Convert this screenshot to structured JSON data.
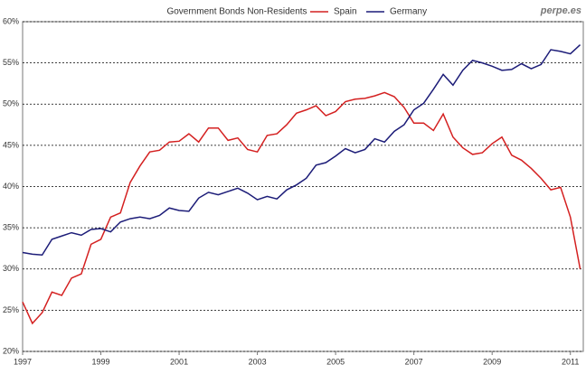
{
  "chart_data": {
    "type": "line",
    "title": "Government Bonds Non-Residents",
    "watermark": "perpe.es",
    "x": [
      1997,
      1997.25,
      1997.5,
      1997.75,
      1998,
      1998.25,
      1998.5,
      1998.75,
      1999,
      1999.25,
      1999.5,
      1999.75,
      2000,
      2000.25,
      2000.5,
      2000.75,
      2001,
      2001.25,
      2001.5,
      2001.75,
      2002,
      2002.25,
      2002.5,
      2002.75,
      2003,
      2003.25,
      2003.5,
      2003.75,
      2004,
      2004.25,
      2004.5,
      2004.75,
      2005,
      2005.25,
      2005.5,
      2005.75,
      2006,
      2006.25,
      2006.5,
      2006.75,
      2007,
      2007.25,
      2007.5,
      2007.75,
      2008,
      2008.25,
      2008.5,
      2008.75,
      2009,
      2009.25,
      2009.5,
      2009.75,
      2010,
      2010.25,
      2010.5,
      2010.75,
      2011,
      2011.25
    ],
    "series": [
      {
        "name": "Spain",
        "color": "#d42020",
        "values": [
          26,
          23.4,
          24.7,
          27.2,
          26.8,
          28.9,
          29.4,
          33,
          33.6,
          36.3,
          36.8,
          40.5,
          42.5,
          44.2,
          44.4,
          45.4,
          45.5,
          46.4,
          45.4,
          47.1,
          47.1,
          45.6,
          45.9,
          44.5,
          44.2,
          46.2,
          46.4,
          47.5,
          48.9,
          49.3,
          49.8,
          48.6,
          49.1,
          50.3,
          50.6,
          50.7,
          51,
          51.4,
          50.9,
          49.6,
          47.7,
          47.7,
          46.8,
          48.8,
          46,
          44.7,
          43.9,
          44.1,
          45.2,
          46,
          43.8,
          43.2,
          42.2,
          41,
          39.6,
          39.9,
          36.3,
          30
        ]
      },
      {
        "name": "Germany",
        "color": "#1c1c78",
        "values": [
          32,
          31.8,
          31.7,
          33.6,
          34,
          34.4,
          34.1,
          34.8,
          34.9,
          34.5,
          35.7,
          36.1,
          36.3,
          36.1,
          36.5,
          37.4,
          37.1,
          37,
          38.6,
          39.3,
          39,
          39.4,
          39.8,
          39.2,
          38.4,
          38.8,
          38.5,
          39.6,
          40.2,
          41,
          42.6,
          42.9,
          43.7,
          44.6,
          44.1,
          44.5,
          45.8,
          45.4,
          46.7,
          47.5,
          49.3,
          50.1,
          51.8,
          53.6,
          52.3,
          54.1,
          55.3,
          55,
          54.6,
          54.1,
          54.2,
          54.9,
          54.3,
          54.8,
          56.6,
          56.4,
          56.1,
          57.2
        ]
      }
    ],
    "xlim": [
      1997,
      2011.33
    ],
    "xticks": [
      1997,
      1999,
      2001,
      2003,
      2005,
      2007,
      2009,
      2011
    ],
    "ylim": [
      20,
      60
    ],
    "yticks": [
      {
        "value": 20,
        "label": "20%"
      },
      {
        "value": 25,
        "label": "25%"
      },
      {
        "value": 30,
        "label": "30%"
      },
      {
        "value": 35,
        "label": "35%"
      },
      {
        "value": 40,
        "label": "40%"
      },
      {
        "value": 45,
        "label": "45%"
      },
      {
        "value": 50,
        "label": "50%"
      },
      {
        "value": 55,
        "label": "55%"
      },
      {
        "value": 60,
        "label": "60%"
      }
    ],
    "grid": true
  }
}
